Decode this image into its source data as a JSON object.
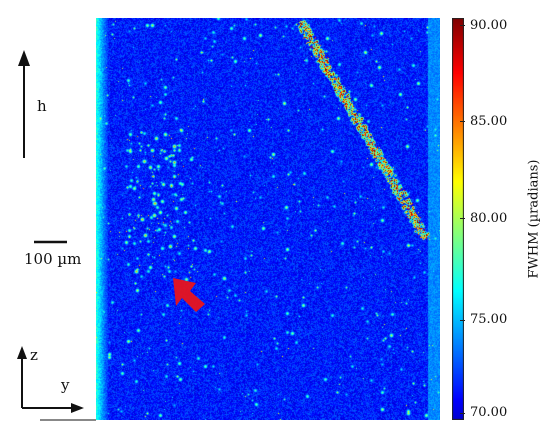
{
  "figure": {
    "image_description_labels": {
      "height_arrow_label": "h",
      "scale_bar_label": "100 µm",
      "axis_z_label": "z",
      "axis_y_label": "y"
    },
    "colorbar": {
      "label": "FWHM (µradians)",
      "ticks": [
        "90.00",
        "85.00",
        "80.00",
        "75.00",
        "70.00"
      ],
      "min": 70.0,
      "max": 90.0
    },
    "colors": {
      "background_blue": "#0a1f9a",
      "arrow_red": "#e8141c"
    }
  }
}
